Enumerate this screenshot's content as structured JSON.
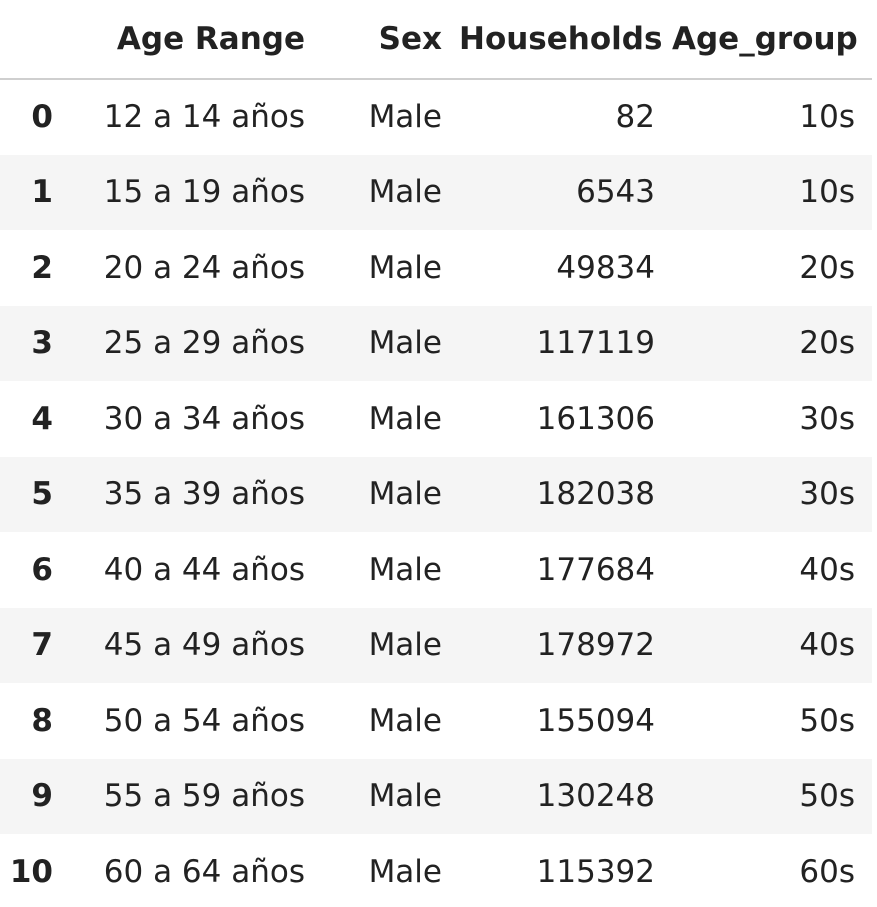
{
  "table": {
    "columns": [
      "",
      "Age Range",
      "Sex",
      "Households",
      "Age_group"
    ],
    "rows": [
      {
        "index": "0",
        "age_range": "12 a 14 años",
        "sex": "Male",
        "households": "82",
        "age_group": "10s"
      },
      {
        "index": "1",
        "age_range": "15 a 19 años",
        "sex": "Male",
        "households": "6543",
        "age_group": "10s"
      },
      {
        "index": "2",
        "age_range": "20 a 24 años",
        "sex": "Male",
        "households": "49834",
        "age_group": "20s"
      },
      {
        "index": "3",
        "age_range": "25 a 29 años",
        "sex": "Male",
        "households": "117119",
        "age_group": "20s"
      },
      {
        "index": "4",
        "age_range": "30 a 34 años",
        "sex": "Male",
        "households": "161306",
        "age_group": "30s"
      },
      {
        "index": "5",
        "age_range": "35 a 39 años",
        "sex": "Male",
        "households": "182038",
        "age_group": "30s"
      },
      {
        "index": "6",
        "age_range": "40 a 44 años",
        "sex": "Male",
        "households": "177684",
        "age_group": "40s"
      },
      {
        "index": "7",
        "age_range": "45 a 49 años",
        "sex": "Male",
        "households": "178972",
        "age_group": "40s"
      },
      {
        "index": "8",
        "age_range": "50 a 54 años",
        "sex": "Male",
        "households": "155094",
        "age_group": "50s"
      },
      {
        "index": "9",
        "age_range": "55 a 59 años",
        "sex": "Male",
        "households": "130248",
        "age_group": "50s"
      },
      {
        "index": "10",
        "age_range": "60 a 64 años",
        "sex": "Male",
        "households": "115392",
        "age_group": "60s"
      }
    ]
  }
}
